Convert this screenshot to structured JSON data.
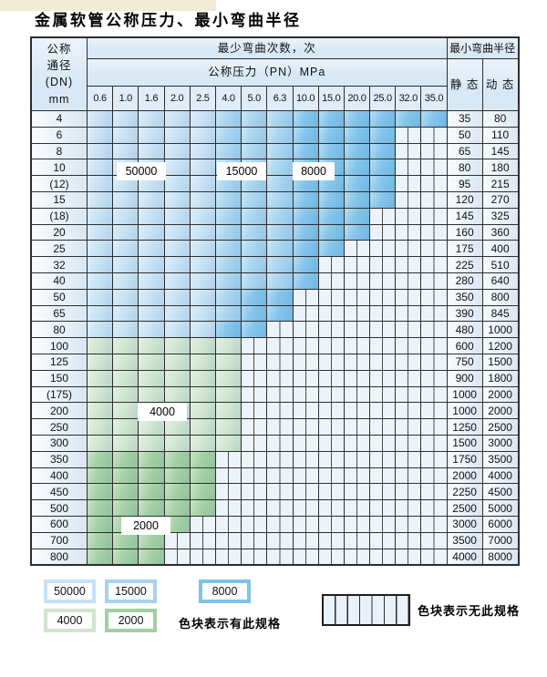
{
  "title": "金属软管公称压力、最小弯曲半径",
  "table": {
    "dn_header_lines": [
      "公称",
      "通径",
      "(DN)",
      "mm"
    ],
    "cycles_header": "最少弯曲次数，次",
    "pressure_header": "公称压力（PN）MPa",
    "pressure_columns": [
      "0.6",
      "1.0",
      "1.6",
      "2.0",
      "2.5",
      "4.0",
      "5.0",
      "6.3",
      "10.0",
      "15.0",
      "20.0",
      "25.0",
      "32.0",
      "35.0"
    ],
    "radius_header": "最小弯曲半径",
    "static_header": "静 态",
    "dynamic_header": "动 态",
    "rows": [
      {
        "dn": "4",
        "zones": "AAAAABBBCCCCCC",
        "static": "35",
        "dynamic": "80"
      },
      {
        "dn": "6",
        "zones": "AAAAABBBCCCCNN",
        "static": "50",
        "dynamic": "110"
      },
      {
        "dn": "8",
        "zones": "AAAAABBBCCCCNN",
        "static": "65",
        "dynamic": "145"
      },
      {
        "dn": "10",
        "zones": "AAAAABBBCCCCNN",
        "static": "80",
        "dynamic": "180"
      },
      {
        "dn": "(12)",
        "zones": "AAAAABBBCCCCNN",
        "static": "95",
        "dynamic": "215"
      },
      {
        "dn": "15",
        "zones": "AAAAABBBCCCCNN",
        "static": "120",
        "dynamic": "270"
      },
      {
        "dn": "(18)",
        "zones": "AAAAABBBCCCNNN",
        "static": "145",
        "dynamic": "325"
      },
      {
        "dn": "20",
        "zones": "AAAAABBBCCCNNN",
        "static": "160",
        "dynamic": "360"
      },
      {
        "dn": "25",
        "zones": "AAAAABBBCCNNNN",
        "static": "175",
        "dynamic": "400"
      },
      {
        "dn": "32",
        "zones": "AAAAABBBCNNNNN",
        "static": "225",
        "dynamic": "510"
      },
      {
        "dn": "40",
        "zones": "AAAAABBBCNNNNN",
        "static": "280",
        "dynamic": "640"
      },
      {
        "dn": "50",
        "zones": "AAAAABCCNNNNNN",
        "static": "350",
        "dynamic": "800"
      },
      {
        "dn": "65",
        "zones": "AAAAABCCNNNNNN",
        "static": "390",
        "dynamic": "845"
      },
      {
        "dn": "80",
        "zones": "AAAAACCNNNNNNN",
        "static": "480",
        "dynamic": "1000"
      },
      {
        "dn": "100",
        "zones": "DDDDDDNNNNNNNN",
        "static": "600",
        "dynamic": "1200"
      },
      {
        "dn": "125",
        "zones": "DDDDDDNNNNNNNN",
        "static": "750",
        "dynamic": "1500"
      },
      {
        "dn": "150",
        "zones": "DDDDDDNNNNNNNN",
        "static": "900",
        "dynamic": "1800"
      },
      {
        "dn": "(175)",
        "zones": "DDDDDDNNNNNNNN",
        "static": "1000",
        "dynamic": "2000"
      },
      {
        "dn": "200",
        "zones": "DDDDDDNNNNNNNN",
        "static": "1000",
        "dynamic": "2000"
      },
      {
        "dn": "250",
        "zones": "DDDDDDNNNNNNNN",
        "static": "1250",
        "dynamic": "2500"
      },
      {
        "dn": "300",
        "zones": "DDDDDDNNNNNNNN",
        "static": "1500",
        "dynamic": "3000"
      },
      {
        "dn": "350",
        "zones": "EEEEENNNNNNNNN",
        "static": "1750",
        "dynamic": "3500"
      },
      {
        "dn": "400",
        "zones": "EEEEENNNNNNNNN",
        "static": "2000",
        "dynamic": "4000"
      },
      {
        "dn": "450",
        "zones": "EEEEENNNNNNNNN",
        "static": "2250",
        "dynamic": "4500"
      },
      {
        "dn": "500",
        "zones": "EEEEENNNNNNNNN",
        "static": "2500",
        "dynamic": "5000"
      },
      {
        "dn": "600",
        "zones": "EEEENNNNNNNNNN",
        "static": "3000",
        "dynamic": "6000"
      },
      {
        "dn": "700",
        "zones": "EEENNNNNNNNNNN",
        "static": "3500",
        "dynamic": "7000"
      },
      {
        "dn": "800",
        "zones": "EEENNNNNNNNNNN",
        "static": "4000",
        "dynamic": "8000"
      }
    ],
    "overlay_labels": [
      "50000",
      "15000",
      "8000",
      "4000",
      "2000"
    ]
  },
  "zones": {
    "A": {
      "cycles": "50000",
      "color": "#c6e1f4"
    },
    "B": {
      "cycles": "15000",
      "color": "#a5d3ef"
    },
    "C": {
      "cycles": "8000",
      "color": "#7ec2ea"
    },
    "D": {
      "cycles": "4000",
      "color": "#cfe5cf"
    },
    "E": {
      "cycles": "2000",
      "color": "#a0cfa0"
    },
    "N": {
      "cycles": "",
      "color": "#edf3fa"
    }
  },
  "legend": {
    "items": [
      {
        "label": "50000",
        "zone": "A"
      },
      {
        "label": "15000",
        "zone": "B"
      },
      {
        "label": "8000",
        "zone": "C"
      },
      {
        "label": "4000",
        "zone": "D"
      },
      {
        "label": "2000",
        "zone": "E"
      }
    ],
    "has_spec_text": "色块表示有此规格",
    "no_spec_text": "色块表示无此规格"
  }
}
